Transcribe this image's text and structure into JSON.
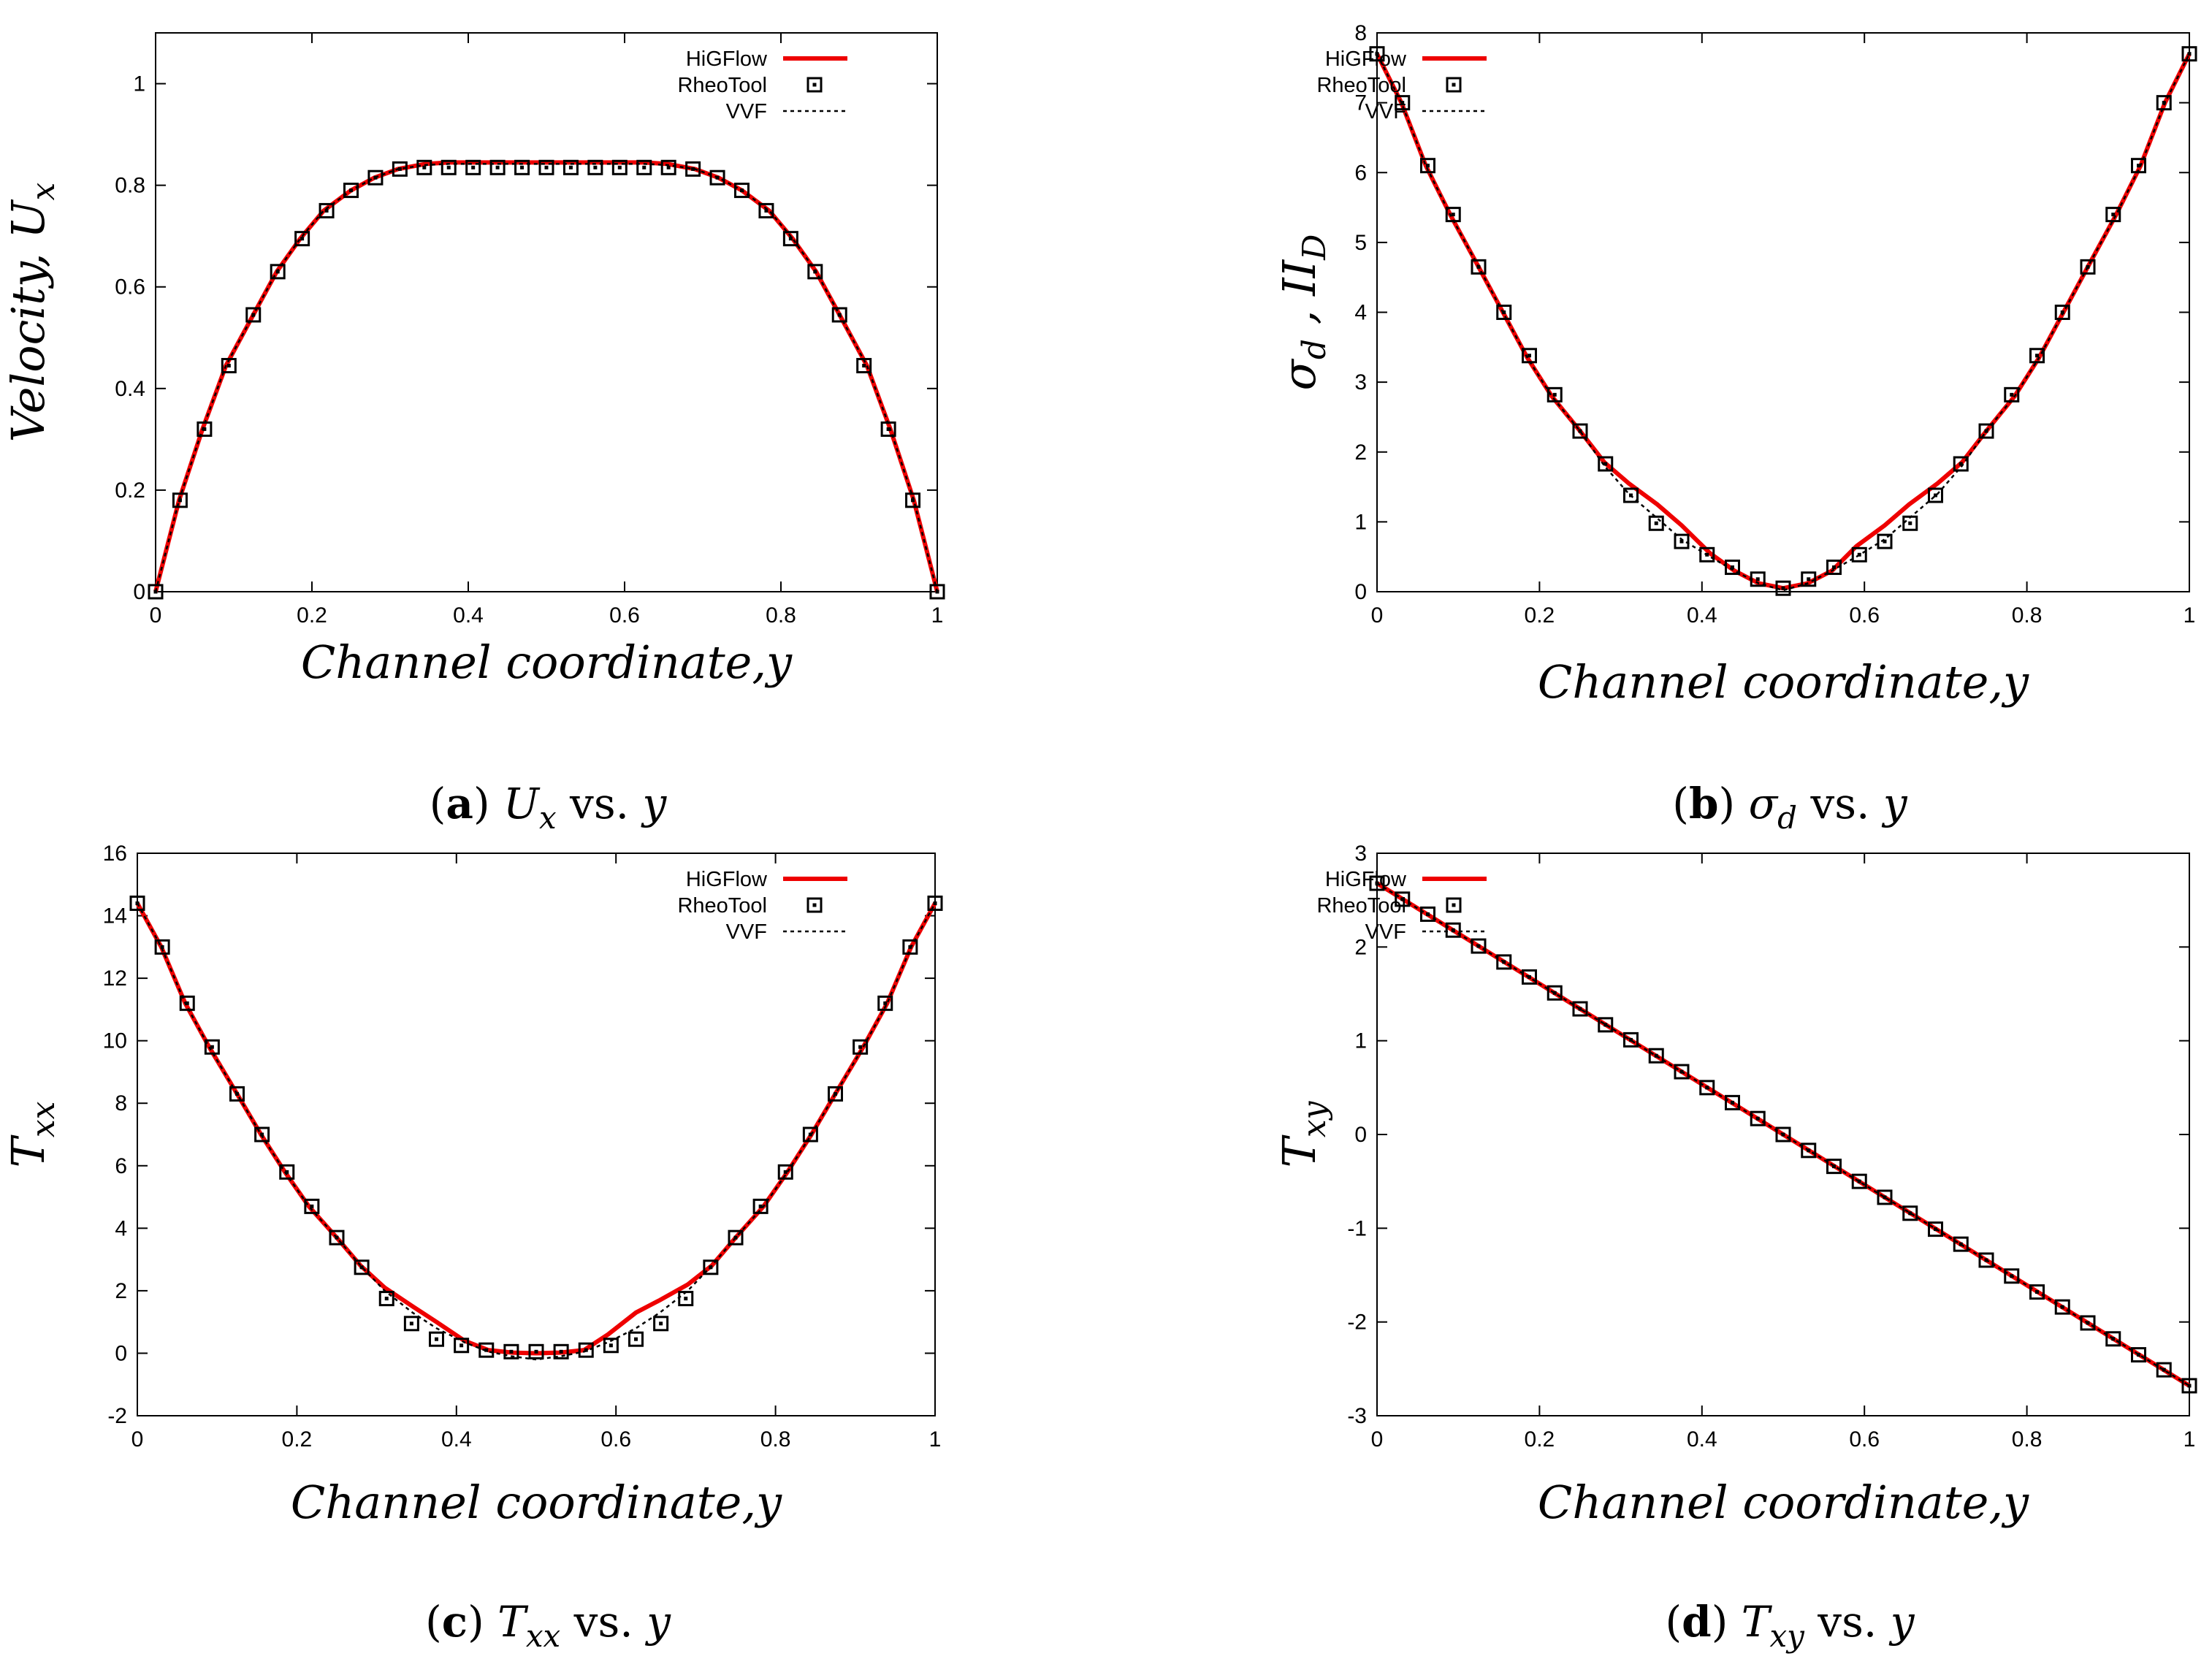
{
  "chart_data": [
    {
      "id": "a",
      "type": "line",
      "caption": {
        "letter": "a",
        "var": "U",
        "sub": "x",
        "vs": " vs. ",
        "y": "y"
      },
      "xlabel": "Channel coordinate,y",
      "ylabel": {
        "main": "Velocity, U",
        "sub": "x"
      },
      "xlim": [
        0,
        1
      ],
      "ylim": [
        0,
        1.1
      ],
      "xticks": [
        0,
        0.2,
        0.4,
        0.6,
        0.8,
        1
      ],
      "xtick_labels": [
        "0",
        "0.2",
        "0.4",
        "0.6",
        "0.8",
        "1"
      ],
      "yticks": [
        0,
        0.2,
        0.4,
        0.6,
        0.8,
        1
      ],
      "ytick_labels": [
        "0",
        "0.2",
        "0.4",
        "0.6",
        "0.8",
        "1"
      ],
      "legend": [
        "HiGFlow",
        "RheoTool",
        "VVF"
      ],
      "series": [
        {
          "name": "HiGFlow",
          "color": "#ee0000",
          "style": "solid",
          "x": [
            0,
            0.03,
            0.06,
            0.09,
            0.125,
            0.155,
            0.185,
            0.215,
            0.25,
            0.28,
            0.31,
            0.345,
            0.375,
            0.5,
            0.625,
            0.655,
            0.69,
            0.72,
            0.75,
            0.785,
            0.815,
            0.845,
            0.875,
            0.91,
            0.94,
            0.97,
            1
          ],
          "y": [
            0,
            0.18,
            0.32,
            0.445,
            0.545,
            0.63,
            0.695,
            0.75,
            0.79,
            0.815,
            0.832,
            0.842,
            0.845,
            0.845,
            0.845,
            0.842,
            0.832,
            0.815,
            0.79,
            0.75,
            0.695,
            0.63,
            0.545,
            0.445,
            0.32,
            0.18,
            0
          ]
        },
        {
          "name": "VVF",
          "color": "#000000",
          "style": "dotted",
          "x": [
            0,
            0.03,
            0.06,
            0.09,
            0.125,
            0.155,
            0.185,
            0.215,
            0.25,
            0.28,
            0.31,
            0.345,
            0.375,
            0.5,
            0.625,
            0.655,
            0.69,
            0.72,
            0.75,
            0.785,
            0.815,
            0.845,
            0.875,
            0.91,
            0.94,
            0.97,
            1
          ],
          "y": [
            0,
            0.18,
            0.32,
            0.445,
            0.545,
            0.63,
            0.695,
            0.75,
            0.79,
            0.815,
            0.832,
            0.84,
            0.842,
            0.842,
            0.842,
            0.84,
            0.832,
            0.815,
            0.79,
            0.75,
            0.695,
            0.63,
            0.545,
            0.445,
            0.32,
            0.18,
            0
          ]
        },
        {
          "name": "RheoTool",
          "color": "#000000",
          "style": "markers",
          "x": [
            0,
            0.03125,
            0.0625,
            0.09375,
            0.125,
            0.15625,
            0.1875,
            0.21875,
            0.25,
            0.28125,
            0.3125,
            0.34375,
            0.375,
            0.40625,
            0.4375,
            0.46875,
            0.5,
            0.53125,
            0.5625,
            0.59375,
            0.625,
            0.65625,
            0.6875,
            0.71875,
            0.75,
            0.78125,
            0.8125,
            0.84375,
            0.875,
            0.90625,
            0.9375,
            0.96875,
            1
          ],
          "y": [
            0,
            0.18,
            0.32,
            0.445,
            0.545,
            0.63,
            0.695,
            0.75,
            0.79,
            0.815,
            0.832,
            0.835,
            0.835,
            0.835,
            0.835,
            0.835,
            0.835,
            0.835,
            0.835,
            0.835,
            0.835,
            0.835,
            0.832,
            0.815,
            0.79,
            0.75,
            0.695,
            0.63,
            0.545,
            0.445,
            0.32,
            0.18,
            0
          ]
        }
      ]
    },
    {
      "id": "b",
      "type": "line",
      "caption": {
        "letter": "b",
        "var": "σ",
        "sub": "d",
        "vs": " vs. ",
        "y": "y"
      },
      "xlabel": "Channel coordinate,y",
      "ylabel": {
        "main": "σ",
        "sub": "d",
        "mid": " , II",
        "sub2": "D"
      },
      "xlim": [
        0,
        1
      ],
      "ylim": [
        0,
        8
      ],
      "xticks": [
        0,
        0.2,
        0.4,
        0.6,
        0.8,
        1
      ],
      "xtick_labels": [
        "0",
        "0.2",
        "0.4",
        "0.6",
        "0.8",
        "1"
      ],
      "yticks": [
        0,
        1,
        2,
        3,
        4,
        5,
        6,
        7,
        8
      ],
      "ytick_labels": [
        "0",
        "1",
        "2",
        "3",
        "4",
        "5",
        "6",
        "7",
        "8"
      ],
      "legend": [
        "HiGFlow",
        "RheoTool",
        "VVF"
      ],
      "series": [
        {
          "name": "HiGFlow",
          "color": "#ee0000",
          "style": "solid",
          "x": [
            0,
            0.03,
            0.06,
            0.09,
            0.125,
            0.155,
            0.185,
            0.215,
            0.25,
            0.28,
            0.31,
            0.345,
            0.375,
            0.41,
            0.44,
            0.47,
            0.5,
            0.53,
            0.56,
            0.59,
            0.625,
            0.655,
            0.69,
            0.72,
            0.75,
            0.785,
            0.815,
            0.845,
            0.875,
            0.91,
            0.94,
            0.97,
            1
          ],
          "y": [
            7.7,
            7.0,
            6.1,
            5.4,
            4.65,
            4.0,
            3.35,
            2.8,
            2.3,
            1.85,
            1.55,
            1.25,
            0.95,
            0.55,
            0.3,
            0.12,
            0.05,
            0.12,
            0.3,
            0.65,
            0.95,
            1.25,
            1.55,
            1.85,
            2.3,
            2.8,
            3.35,
            4.0,
            4.65,
            5.4,
            6.1,
            7.0,
            7.7
          ]
        },
        {
          "name": "VVF",
          "color": "#000000",
          "style": "dotted",
          "x": [
            0,
            0.03,
            0.06,
            0.09,
            0.125,
            0.155,
            0.185,
            0.215,
            0.25,
            0.28,
            0.31,
            0.345,
            0.375,
            0.41,
            0.44,
            0.47,
            0.5,
            0.53,
            0.56,
            0.59,
            0.625,
            0.655,
            0.69,
            0.72,
            0.75,
            0.785,
            0.815,
            0.845,
            0.875,
            0.91,
            0.94,
            0.97,
            1
          ],
          "y": [
            7.7,
            7.0,
            6.1,
            5.4,
            4.65,
            4.0,
            3.35,
            2.8,
            2.3,
            1.8,
            1.4,
            1.05,
            0.75,
            0.5,
            0.3,
            0.12,
            0.02,
            0.12,
            0.3,
            0.5,
            0.75,
            1.05,
            1.4,
            1.8,
            2.3,
            2.8,
            3.35,
            4.0,
            4.65,
            5.4,
            6.1,
            7.0,
            7.7
          ]
        },
        {
          "name": "RheoTool",
          "color": "#000000",
          "style": "markers",
          "x": [
            0,
            0.03125,
            0.0625,
            0.09375,
            0.125,
            0.15625,
            0.1875,
            0.21875,
            0.25,
            0.28125,
            0.3125,
            0.34375,
            0.375,
            0.40625,
            0.4375,
            0.46875,
            0.5,
            0.53125,
            0.5625,
            0.59375,
            0.625,
            0.65625,
            0.6875,
            0.71875,
            0.75,
            0.78125,
            0.8125,
            0.84375,
            0.875,
            0.90625,
            0.9375,
            0.96875,
            1
          ],
          "y": [
            7.7,
            7.0,
            6.1,
            5.4,
            4.65,
            4.0,
            3.38,
            2.82,
            2.3,
            1.83,
            1.38,
            0.98,
            0.72,
            0.53,
            0.35,
            0.18,
            0.05,
            0.18,
            0.35,
            0.53,
            0.72,
            0.98,
            1.38,
            1.83,
            2.3,
            2.82,
            3.38,
            4.0,
            4.65,
            5.4,
            6.1,
            7.0,
            7.7
          ]
        }
      ]
    },
    {
      "id": "c",
      "type": "line",
      "caption": {
        "letter": "c",
        "var": "T",
        "sub": "xx",
        "vs": " vs. ",
        "y": "y"
      },
      "xlabel": "Channel coordinate,y",
      "ylabel": {
        "main": "T",
        "sub": "xx"
      },
      "xlim": [
        0,
        1
      ],
      "ylim": [
        -2,
        16
      ],
      "xticks": [
        0,
        0.2,
        0.4,
        0.6,
        0.8,
        1
      ],
      "xtick_labels": [
        "0",
        "0.2",
        "0.4",
        "0.6",
        "0.8",
        "1"
      ],
      "yticks": [
        -2,
        0,
        2,
        4,
        6,
        8,
        10,
        12,
        14,
        16
      ],
      "ytick_labels": [
        "-2",
        "0",
        "2",
        "4",
        "6",
        "8",
        "10",
        "12",
        "14",
        "16"
      ],
      "legend": [
        "HiGFlow",
        "RheoTool",
        "VVF"
      ],
      "series": [
        {
          "name": "HiGFlow",
          "color": "#ee0000",
          "style": "solid",
          "x": [
            0,
            0.03,
            0.06,
            0.09,
            0.125,
            0.155,
            0.185,
            0.215,
            0.25,
            0.28,
            0.31,
            0.345,
            0.375,
            0.41,
            0.44,
            0.47,
            0.5,
            0.53,
            0.56,
            0.59,
            0.625,
            0.655,
            0.69,
            0.72,
            0.75,
            0.785,
            0.815,
            0.845,
            0.875,
            0.91,
            0.94,
            0.97,
            1
          ],
          "y": [
            14.4,
            13.0,
            11.2,
            9.8,
            8.3,
            7.0,
            5.8,
            4.7,
            3.7,
            2.8,
            2.1,
            1.5,
            1.0,
            0.4,
            0.1,
            0.02,
            0.0,
            0.02,
            0.1,
            0.6,
            1.3,
            1.7,
            2.2,
            2.8,
            3.7,
            4.7,
            5.8,
            7.0,
            8.3,
            9.8,
            11.2,
            13.0,
            14.4
          ]
        },
        {
          "name": "VVF",
          "color": "#000000",
          "style": "dotted",
          "x": [
            0,
            0.03,
            0.06,
            0.09,
            0.125,
            0.155,
            0.185,
            0.215,
            0.25,
            0.28,
            0.31,
            0.345,
            0.375,
            0.41,
            0.44,
            0.47,
            0.5,
            0.53,
            0.56,
            0.59,
            0.625,
            0.655,
            0.69,
            0.72,
            0.75,
            0.785,
            0.815,
            0.845,
            0.875,
            0.91,
            0.94,
            0.97,
            1
          ],
          "y": [
            14.4,
            13.0,
            11.2,
            9.8,
            8.3,
            7.0,
            5.8,
            4.7,
            3.7,
            2.8,
            2.0,
            1.3,
            0.8,
            0.35,
            0.05,
            -0.1,
            -0.2,
            -0.1,
            0.05,
            0.35,
            0.8,
            1.3,
            2.0,
            2.8,
            3.7,
            4.7,
            5.8,
            7.0,
            8.3,
            9.8,
            11.2,
            13.0,
            14.4
          ]
        },
        {
          "name": "RheoTool",
          "color": "#000000",
          "style": "markers",
          "x": [
            0,
            0.03125,
            0.0625,
            0.09375,
            0.125,
            0.15625,
            0.1875,
            0.21875,
            0.25,
            0.28125,
            0.3125,
            0.34375,
            0.375,
            0.40625,
            0.4375,
            0.46875,
            0.5,
            0.53125,
            0.5625,
            0.59375,
            0.625,
            0.65625,
            0.6875,
            0.71875,
            0.75,
            0.78125,
            0.8125,
            0.84375,
            0.875,
            0.90625,
            0.9375,
            0.96875,
            1
          ],
          "y": [
            14.4,
            13.0,
            11.2,
            9.8,
            8.3,
            7.0,
            5.8,
            4.7,
            3.7,
            2.75,
            1.75,
            0.95,
            0.45,
            0.25,
            0.1,
            0.05,
            0.05,
            0.05,
            0.1,
            0.25,
            0.45,
            0.95,
            1.75,
            2.75,
            3.7,
            4.7,
            5.8,
            7.0,
            8.3,
            9.8,
            11.2,
            13.0,
            14.4
          ]
        }
      ]
    },
    {
      "id": "d",
      "type": "line",
      "caption": {
        "letter": "d",
        "var": "T",
        "sub": "xy",
        "vs": " vs. ",
        "y": "y"
      },
      "xlabel": "Channel coordinate,y",
      "ylabel": {
        "main": "T",
        "sub": "xy"
      },
      "xlim": [
        0,
        1
      ],
      "ylim": [
        -3,
        3
      ],
      "xticks": [
        0,
        0.2,
        0.4,
        0.6,
        0.8,
        1
      ],
      "xtick_labels": [
        "0",
        "0.2",
        "0.4",
        "0.6",
        "0.8",
        "1"
      ],
      "yticks": [
        -3,
        -2,
        -1,
        0,
        1,
        2,
        3
      ],
      "ytick_labels": [
        "-3",
        "-2",
        "-1",
        "0",
        "1",
        "2",
        "3"
      ],
      "legend": [
        "HiGFlow",
        "RheoTool",
        "VVF"
      ],
      "series": [
        {
          "name": "HiGFlow",
          "color": "#ee0000",
          "style": "solid",
          "x": [
            0,
            1
          ],
          "y": [
            2.68,
            -2.68
          ]
        },
        {
          "name": "VVF",
          "color": "#000000",
          "style": "dotted",
          "x": [
            0,
            1
          ],
          "y": [
            2.68,
            -2.68
          ]
        },
        {
          "name": "RheoTool",
          "color": "#000000",
          "style": "markers",
          "x": [
            0,
            0.03125,
            0.0625,
            0.09375,
            0.125,
            0.15625,
            0.1875,
            0.21875,
            0.25,
            0.28125,
            0.3125,
            0.34375,
            0.375,
            0.40625,
            0.4375,
            0.46875,
            0.5,
            0.53125,
            0.5625,
            0.59375,
            0.625,
            0.65625,
            0.6875,
            0.71875,
            0.75,
            0.78125,
            0.8125,
            0.84375,
            0.875,
            0.90625,
            0.9375,
            0.96875,
            1
          ],
          "y": [
            2.68,
            2.51,
            2.35,
            2.18,
            2.01,
            1.84,
            1.68,
            1.51,
            1.34,
            1.17,
            1.01,
            0.84,
            0.67,
            0.5,
            0.34,
            0.17,
            0,
            -0.17,
            -0.34,
            -0.5,
            -0.67,
            -0.84,
            -1.01,
            -1.17,
            -1.34,
            -1.51,
            -1.68,
            -1.84,
            -2.01,
            -2.18,
            -2.35,
            -2.51,
            -2.68
          ]
        }
      ]
    }
  ]
}
